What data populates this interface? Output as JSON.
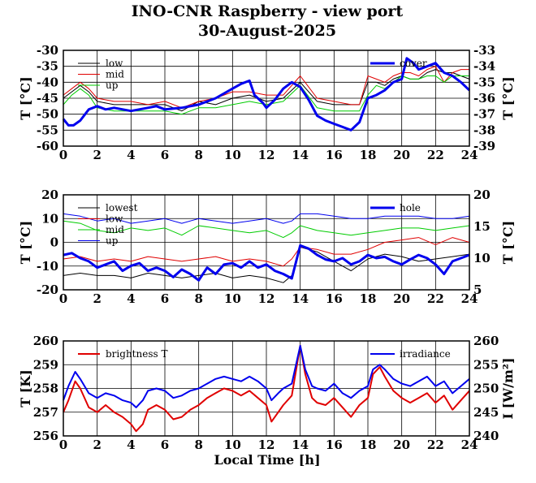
{
  "title": "INO-CNR Raspberry - view port",
  "subtitle": "30-August-2025",
  "xlabel": "Local Time [h]",
  "chart_data": [
    {
      "type": "line",
      "id": "panel1",
      "ylabel": "T [°C]",
      "ylabel_right": "T [°C]",
      "xlim": [
        0,
        24
      ],
      "xticks": [
        "0",
        "2",
        "4",
        "6",
        "8",
        "10",
        "12",
        "14",
        "16",
        "18",
        "20",
        "22",
        "24"
      ],
      "ylim": [
        -60,
        -30
      ],
      "yticks": [
        "-30",
        "-35",
        "-40",
        "-45",
        "-50",
        "-55",
        "-60"
      ],
      "ylim_right": [
        -39,
        -33
      ],
      "yticks_right": [
        "-33",
        "-34",
        "-35",
        "-36",
        "-37",
        "-38",
        "-39"
      ],
      "grid": true,
      "legend_left": [
        "low",
        "mid",
        "up"
      ],
      "legend_right": [
        "cover"
      ],
      "series": [
        {
          "name": "low",
          "axis": "left",
          "color": "#000000",
          "x": [
            0,
            0.5,
            1,
            1.5,
            2,
            3,
            4,
            5,
            6,
            7,
            8,
            9,
            10,
            11,
            12,
            13,
            14,
            15,
            16,
            17,
            17.5,
            18,
            18.5,
            19,
            19.5,
            20,
            20.5,
            21,
            21.5,
            22,
            22.5,
            23,
            23.5,
            24
          ],
          "y": [
            -45,
            -43,
            -41,
            -43,
            -46,
            -47,
            -47,
            -47,
            -47,
            -49,
            -46,
            -47,
            -45,
            -44,
            -46,
            -45,
            -40,
            -46,
            -47,
            -47,
            -47,
            -40,
            -40,
            -41,
            -39,
            -38,
            -39,
            -39,
            -37,
            -36,
            -37,
            -37,
            -38,
            -39
          ]
        },
        {
          "name": "mid",
          "axis": "left",
          "color": "#e00000",
          "x": [
            0,
            0.5,
            1,
            1.5,
            2,
            3,
            4,
            5,
            6,
            7,
            8,
            9,
            10,
            11,
            12,
            13,
            14,
            15,
            16,
            17,
            17.5,
            18,
            18.5,
            19,
            19.5,
            20,
            20.5,
            21,
            21.5,
            22,
            22.5,
            23,
            23.5,
            24
          ],
          "y": [
            -44,
            -42,
            -40,
            -42,
            -45,
            -46,
            -46,
            -47,
            -46,
            -48,
            -46,
            -45,
            -43,
            -43,
            -44,
            -44,
            -38,
            -45,
            -46,
            -47,
            -47,
            -38,
            -39,
            -40,
            -38,
            -37,
            -37,
            -38,
            -36,
            -35,
            -40,
            -37,
            -36,
            -36
          ]
        },
        {
          "name": "up",
          "axis": "left",
          "color": "#00cc00",
          "x": [
            0,
            0.5,
            1,
            1.5,
            2,
            3,
            4,
            5,
            6,
            7,
            8,
            9,
            10,
            11,
            12,
            13,
            14,
            15,
            16,
            17,
            17.5,
            18,
            18.5,
            19,
            19.5,
            20,
            20.5,
            21,
            21.5,
            22,
            22.5,
            23,
            23.5,
            24
          ],
          "y": [
            -47,
            -44,
            -42,
            -44,
            -48,
            -49,
            -49,
            -49,
            -49,
            -50,
            -48,
            -48,
            -47,
            -46,
            -47,
            -46,
            -41,
            -48,
            -49,
            -49,
            -49,
            -44,
            -41,
            -42,
            -40,
            -38,
            -39,
            -39,
            -38,
            -38,
            -40,
            -38,
            -38,
            -38
          ]
        },
        {
          "name": "cover",
          "axis": "right",
          "color": "#0000ee",
          "width": 3,
          "x": [
            0,
            0.3,
            0.6,
            1,
            1.5,
            2,
            2.5,
            3,
            4,
            5,
            5.5,
            6,
            7,
            8,
            9,
            10,
            10.5,
            11,
            11.3,
            11.8,
            12,
            12.5,
            13,
            13.5,
            14,
            14.5,
            15,
            15.5,
            16,
            16.5,
            17,
            17.5,
            18,
            18.5,
            19,
            19.5,
            20,
            20.3,
            20.7,
            21,
            21.5,
            22,
            22.5,
            23,
            23.5,
            24
          ],
          "y": [
            -37.3,
            -37.7,
            -37.7,
            -37.4,
            -36.7,
            -36.5,
            -36.7,
            -36.6,
            -36.8,
            -36.6,
            -36.5,
            -36.7,
            -36.6,
            -36.4,
            -36.0,
            -35.4,
            -35.1,
            -34.9,
            -35.8,
            -36.3,
            -36.6,
            -36.1,
            -35.4,
            -35.0,
            -35.3,
            -36.1,
            -37.1,
            -37.4,
            -37.6,
            -37.8,
            -38.0,
            -37.5,
            -36.0,
            -35.8,
            -35.5,
            -35.0,
            -34.8,
            -33.5,
            -33.8,
            -34.2,
            -34.0,
            -33.8,
            -34.4,
            -34.6,
            -35.0,
            -35.5
          ]
        }
      ]
    },
    {
      "type": "line",
      "id": "panel2",
      "ylabel": "T [°C]",
      "ylabel_right": "T [°C]",
      "xlim": [
        0,
        24
      ],
      "xticks": [
        "0",
        "2",
        "4",
        "6",
        "8",
        "10",
        "12",
        "14",
        "16",
        "18",
        "20",
        "22",
        "24"
      ],
      "ylim": [
        -20,
        20
      ],
      "yticks": [
        "20",
        "10",
        "0",
        "-10",
        "-20"
      ],
      "ylim_right": [
        5,
        20
      ],
      "yticks_right": [
        "20",
        "15",
        "10",
        "5"
      ],
      "grid": true,
      "legend_left": [
        "lowest",
        "low",
        "mid",
        "up"
      ],
      "legend_right": [
        "hole"
      ],
      "series": [
        {
          "name": "lowest",
          "axis": "left",
          "color": "#000000",
          "x": [
            0,
            1,
            2,
            3,
            4,
            5,
            6,
            7,
            8,
            9,
            10,
            11,
            12,
            13,
            13.5,
            14,
            15,
            16,
            17,
            18,
            19,
            20,
            21,
            22,
            23,
            24
          ],
          "y": [
            -14,
            -13,
            -14,
            -14,
            -15,
            -13,
            -14,
            -15,
            -14,
            -13,
            -15,
            -14,
            -15,
            -17,
            -14,
            -2,
            -4,
            -8,
            -12,
            -7,
            -5,
            -6,
            -8,
            -7,
            -6,
            -5
          ]
        },
        {
          "name": "low",
          "axis": "left",
          "color": "#e00000",
          "x": [
            0,
            1,
            2,
            3,
            4,
            5,
            6,
            7,
            8,
            9,
            10,
            11,
            12,
            13,
            13.5,
            14,
            15,
            16,
            17,
            18,
            19,
            20,
            21,
            22,
            23,
            24
          ],
          "y": [
            -7,
            -6,
            -8,
            -7,
            -8,
            -6,
            -7,
            -8,
            -7,
            -6,
            -8,
            -7,
            -8,
            -10,
            -7,
            -2,
            -3,
            -5,
            -5,
            -3,
            0,
            1,
            2,
            -1,
            2,
            0
          ]
        },
        {
          "name": "mid",
          "axis": "left",
          "color": "#00cc00",
          "x": [
            0,
            1,
            2,
            3,
            4,
            5,
            6,
            7,
            8,
            9,
            10,
            11,
            12,
            13,
            13.5,
            14,
            15,
            16,
            17,
            18,
            19,
            20,
            21,
            22,
            23,
            24
          ],
          "y": [
            9,
            8,
            5,
            4,
            6,
            5,
            6,
            3,
            7,
            6,
            5,
            4,
            5,
            2,
            4,
            7,
            5,
            4,
            3,
            4,
            5,
            6,
            6,
            5,
            6,
            7
          ]
        },
        {
          "name": "up",
          "axis": "left",
          "color": "#0000ee",
          "x": [
            0,
            1,
            2,
            3,
            4,
            5,
            6,
            7,
            8,
            9,
            10,
            11,
            12,
            13,
            13.5,
            14,
            15,
            16,
            17,
            18,
            19,
            20,
            21,
            22,
            23,
            24
          ],
          "y": [
            12,
            11,
            9,
            10,
            8,
            9,
            10,
            8,
            10,
            9,
            8,
            9,
            10,
            8,
            9,
            12,
            12,
            11,
            10,
            10,
            11,
            11,
            11,
            10,
            10,
            11
          ]
        },
        {
          "name": "hole",
          "axis": "right",
          "color": "#0000ee",
          "width": 3,
          "x": [
            0,
            0.5,
            1,
            1.5,
            2,
            2.5,
            3,
            3.5,
            4,
            4.5,
            5,
            5.5,
            6,
            6.5,
            7,
            7.5,
            8,
            8.5,
            9,
            9.5,
            10,
            10.5,
            11,
            11.5,
            12,
            12.5,
            13,
            13.5,
            14,
            14.5,
            15,
            15.5,
            16,
            16.5,
            17,
            17.5,
            18,
            18.5,
            19,
            19.5,
            20,
            20.5,
            21,
            21.5,
            22,
            22.5,
            23,
            23.5,
            24
          ],
          "y": [
            10.5,
            10.8,
            10.0,
            9.5,
            8.5,
            9.0,
            9.5,
            8.0,
            8.8,
            9.2,
            8.0,
            8.5,
            8.0,
            7.0,
            8.2,
            7.5,
            6.5,
            8.5,
            7.5,
            9.0,
            9.2,
            8.5,
            9.5,
            8.5,
            9.0,
            8.0,
            7.5,
            6.8,
            12.0,
            11.5,
            10.5,
            9.8,
            9.5,
            10.0,
            9.0,
            9.5,
            10.5,
            10.0,
            10.2,
            9.5,
            9.0,
            9.8,
            10.5,
            10.0,
            9.0,
            7.5,
            9.5,
            10.0,
            10.5
          ]
        }
      ]
    },
    {
      "type": "line",
      "id": "panel3",
      "ylabel": "T [K]",
      "ylabel_right": "I [W/m²]",
      "xlim": [
        0,
        24
      ],
      "xticks": [
        "0",
        "2",
        "4",
        "6",
        "8",
        "10",
        "12",
        "14",
        "16",
        "18",
        "20",
        "22",
        "24"
      ],
      "ylim": [
        256,
        260
      ],
      "yticks": [
        "260",
        "259",
        "258",
        "257",
        "256"
      ],
      "ylim_right": [
        240,
        260
      ],
      "yticks_right": [
        "260",
        "255",
        "250",
        "245",
        "240"
      ],
      "grid": true,
      "legend_left": [
        "brightness T"
      ],
      "legend_right": [
        "irradiance"
      ],
      "series": [
        {
          "name": "brightness T",
          "axis": "left",
          "color": "#e00000",
          "width": 2,
          "x": [
            0,
            0.3,
            0.7,
            1,
            1.5,
            2,
            2.5,
            3,
            3.5,
            4,
            4.3,
            4.7,
            5,
            5.5,
            6,
            6.5,
            7,
            7.5,
            8,
            8.5,
            9,
            9.5,
            10,
            10.5,
            11,
            11.5,
            12,
            12.3,
            12.7,
            13,
            13.5,
            14,
            14.3,
            14.7,
            15,
            15.5,
            16,
            16.5,
            17,
            17.5,
            18,
            18.3,
            18.7,
            19,
            19.5,
            20,
            20.5,
            21,
            21.5,
            22,
            22.5,
            23,
            23.5,
            24
          ],
          "y": [
            257.0,
            257.5,
            258.3,
            258.0,
            257.2,
            257.0,
            257.3,
            257.0,
            256.8,
            256.5,
            256.2,
            256.5,
            257.1,
            257.3,
            257.1,
            256.7,
            256.8,
            257.1,
            257.3,
            257.6,
            257.8,
            258.0,
            257.9,
            257.7,
            257.9,
            257.6,
            257.3,
            256.6,
            257.0,
            257.3,
            257.7,
            259.8,
            258.6,
            257.6,
            257.4,
            257.3,
            257.6,
            257.2,
            256.8,
            257.3,
            257.6,
            258.6,
            258.9,
            258.5,
            257.9,
            257.6,
            257.4,
            257.6,
            257.8,
            257.4,
            257.7,
            257.1,
            257.5,
            257.9
          ]
        },
        {
          "name": "irradiance",
          "axis": "right",
          "color": "#0000ee",
          "width": 2,
          "x": [
            0,
            0.3,
            0.7,
            1,
            1.5,
            2,
            2.5,
            3,
            3.5,
            4,
            4.3,
            4.7,
            5,
            5.5,
            6,
            6.5,
            7,
            7.5,
            8,
            8.5,
            9,
            9.5,
            10,
            10.5,
            11,
            11.5,
            12,
            12.3,
            12.7,
            13,
            13.5,
            14,
            14.3,
            14.7,
            15,
            15.5,
            16,
            16.5,
            17,
            17.5,
            18,
            18.3,
            18.7,
            19,
            19.5,
            20,
            20.5,
            21,
            21.5,
            22,
            22.5,
            23,
            23.5,
            24
          ],
          "y": [
            247.5,
            250.5,
            253.5,
            252.0,
            249.0,
            248.0,
            249.0,
            248.5,
            247.5,
            247.0,
            246.0,
            247.5,
            249.5,
            250.0,
            249.5,
            248.0,
            248.5,
            249.5,
            250.0,
            251.0,
            252.0,
            252.5,
            252.0,
            251.5,
            252.5,
            251.5,
            250.0,
            247.5,
            249.0,
            250.0,
            251.0,
            259.0,
            254.0,
            250.5,
            250.0,
            249.5,
            251.0,
            249.0,
            248.0,
            249.5,
            250.5,
            254.0,
            255.0,
            254.0,
            252.0,
            251.0,
            250.5,
            251.5,
            252.5,
            250.5,
            251.5,
            249.0,
            250.5,
            252.0
          ]
        }
      ]
    }
  ]
}
